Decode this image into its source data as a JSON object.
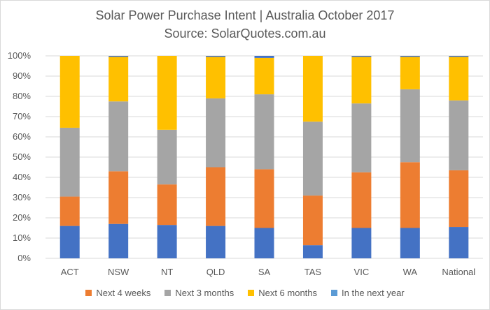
{
  "chart_data": {
    "type": "bar",
    "stacked": true,
    "title": "Solar Power Purchase Intent | Australia October 2017",
    "subtitle": "Source: SolarQuotes.com.au",
    "categories": [
      "ACT",
      "NSW",
      "NT",
      "QLD",
      "SA",
      "TAS",
      "VIC",
      "WA",
      "National"
    ],
    "ylim": [
      0,
      100
    ],
    "yticks": [
      "0%",
      "10%",
      "20%",
      "30%",
      "40%",
      "50%",
      "60%",
      "70%",
      "80%",
      "90%",
      "100%"
    ],
    "grid": true,
    "legend_position": "bottom",
    "series": [
      {
        "name": "In the next year",
        "color": "#4472c4",
        "values": [
          16,
          17,
          16.5,
          16,
          15,
          6.5,
          15,
          15,
          15.5
        ]
      },
      {
        "name": "Next 4 weeks",
        "color": "#ed7d31",
        "values": [
          14.5,
          26,
          20,
          29,
          29,
          24.5,
          27.5,
          32.5,
          28
        ]
      },
      {
        "name": "Next 3 months",
        "color": "#a5a5a5",
        "values": [
          34,
          34.5,
          27,
          34,
          37,
          36.5,
          34,
          36,
          34.5
        ]
      },
      {
        "name": "Next 6 months",
        "color": "#ffc000",
        "values": [
          35.5,
          22,
          36.5,
          20.5,
          18,
          32.5,
          23,
          16,
          21.5
        ]
      },
      {
        "name": "In the next year (top)",
        "color": "#4472c4",
        "values": [
          0,
          0.5,
          0,
          0.5,
          1,
          0,
          0.5,
          0.5,
          0.5
        ]
      }
    ],
    "legend": [
      {
        "name": "Next 4 weeks",
        "color": "#ed7d31"
      },
      {
        "name": "Next 3 months",
        "color": "#a5a5a5"
      },
      {
        "name": "Next 6 months",
        "color": "#ffc000"
      },
      {
        "name": "In the next year",
        "color": "#5b9bd5"
      }
    ]
  }
}
